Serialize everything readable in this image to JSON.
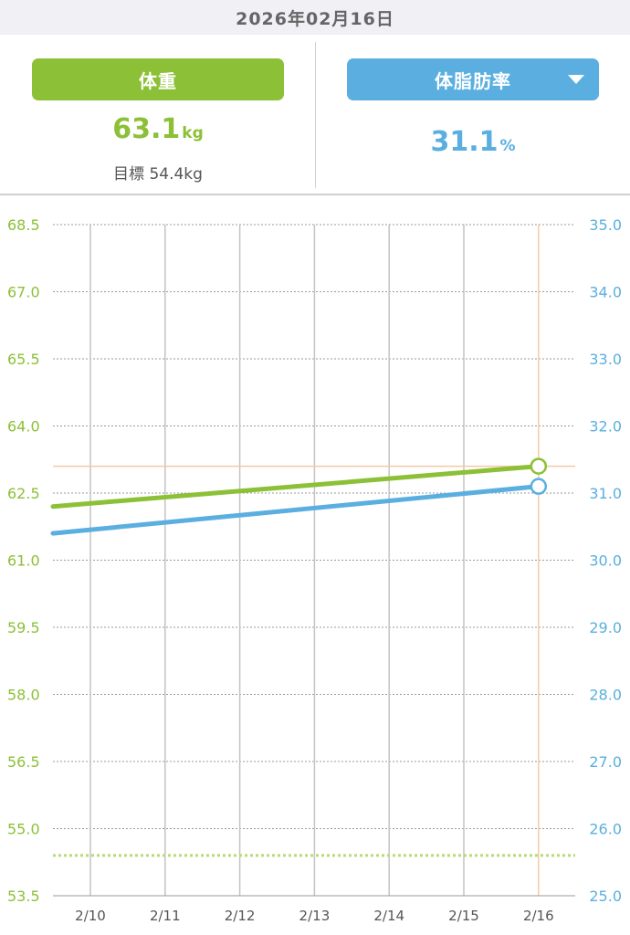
{
  "header": {
    "date": "2026年02月16日"
  },
  "weight": {
    "label": "体重",
    "value": "63.1",
    "unit": "kg",
    "goal_label": "目標",
    "goal_value": "54.4kg",
    "color": "#8cc037"
  },
  "body_fat": {
    "label": "体脂肪率",
    "value": "31.1",
    "unit": "%",
    "color": "#5aafe0",
    "dropdown_icon": "triangle-down-icon"
  },
  "chart_data": {
    "type": "line",
    "categories": [
      "2/10",
      "2/11",
      "2/12",
      "2/13",
      "2/14",
      "2/15",
      "2/16"
    ],
    "left_axis": {
      "ticks": [
        "68.5",
        "67.0",
        "65.5",
        "64.0",
        "62.5",
        "61.0",
        "59.5",
        "58.0",
        "56.5",
        "55.0",
        "53.5"
      ],
      "ylim": [
        53.5,
        68.5
      ]
    },
    "right_axis": {
      "ticks": [
        "35.0",
        "34.0",
        "33.0",
        "32.0",
        "31.0",
        "30.0",
        "29.0",
        "28.0",
        "27.0",
        "26.0",
        "25.0"
      ],
      "ylim": [
        25.0,
        35.0
      ]
    },
    "series": [
      {
        "name": "体重",
        "axis": "left",
        "color": "#8cc037",
        "x_start": "2/10",
        "value_start": 62.2,
        "x_end": "2/16",
        "value_end": 63.1
      },
      {
        "name": "体脂肪率",
        "axis": "right",
        "color": "#5aafe0",
        "x_start": "2/10",
        "value_start": 30.4,
        "x_end": "2/16",
        "value_end": 31.1
      }
    ],
    "goal_line": {
      "axis": "left",
      "value": 54.4,
      "color": "#b5dc78"
    },
    "selected_category": "2/16",
    "selected_marker_color": "#f5c9a8"
  }
}
